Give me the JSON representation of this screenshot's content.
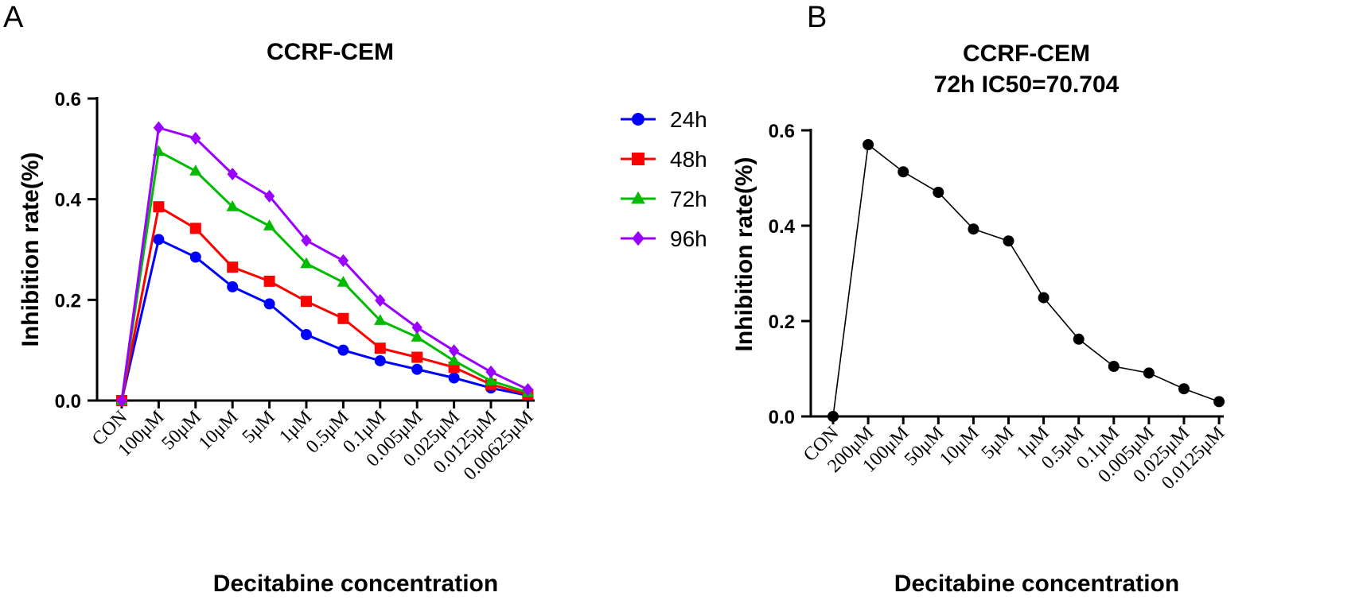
{
  "panels": {
    "a": {
      "letter": "A"
    },
    "b": {
      "letter": "B"
    }
  },
  "chart_data": [
    {
      "type": "line",
      "title": "CCRF-CEM",
      "xlabel": "Decitabine concentration",
      "ylabel": "Inhibition rate(%)",
      "ylim": [
        0,
        0.6
      ],
      "yticks": [
        "0.0",
        "0.2",
        "0.4",
        "0.6"
      ],
      "categories": [
        "CON",
        "100μM",
        "50μM",
        "10μM",
        "5μM",
        "1μM",
        "0.5μM",
        "0.1μM",
        "0.005μM",
        "0.025μM",
        "0.0125μM",
        "0.00625μM"
      ],
      "legend_position": "right",
      "series": [
        {
          "name": "24h",
          "color": "#0000ff",
          "marker": "circle",
          "values": [
            0,
            0.32,
            0.285,
            0.226,
            0.192,
            0.131,
            0.1,
            0.079,
            0.062,
            0.045,
            0.025,
            0.01
          ]
        },
        {
          "name": "48h",
          "color": "#ff0000",
          "marker": "square",
          "values": [
            0,
            0.385,
            0.342,
            0.265,
            0.237,
            0.197,
            0.163,
            0.104,
            0.086,
            0.066,
            0.032,
            0.012
          ]
        },
        {
          "name": "72h",
          "color": "#00bb00",
          "marker": "triangle",
          "values": [
            0,
            0.495,
            0.456,
            0.385,
            0.347,
            0.272,
            0.235,
            0.159,
            0.126,
            0.079,
            0.039,
            0.016
          ]
        },
        {
          "name": "96h",
          "color": "#9900ff",
          "marker": "diamond",
          "values": [
            0,
            0.542,
            0.521,
            0.45,
            0.406,
            0.318,
            0.278,
            0.199,
            0.145,
            0.099,
            0.057,
            0.022
          ]
        }
      ]
    },
    {
      "type": "line",
      "title": "CCRF-CEM",
      "subtitle": "72h IC50=70.704",
      "xlabel": "Decitabine concentration",
      "ylabel": "Inhibition rate(%)",
      "ylim": [
        0,
        0.6
      ],
      "yticks": [
        "0.0",
        "0.2",
        "0.4",
        "0.6"
      ],
      "categories": [
        "CON",
        "200μM",
        "100μM",
        "50μM",
        "10μM",
        "5μM",
        "1μM",
        "0.5μM",
        "0.1μM",
        "0.005μM",
        "0.025μM",
        "0.0125μM"
      ],
      "series": [
        {
          "name": "72h",
          "color": "#000000",
          "marker": "circle",
          "values": [
            0,
            0.57,
            0.513,
            0.47,
            0.393,
            0.368,
            0.249,
            0.162,
            0.105,
            0.091,
            0.058,
            0.031
          ]
        }
      ]
    }
  ]
}
